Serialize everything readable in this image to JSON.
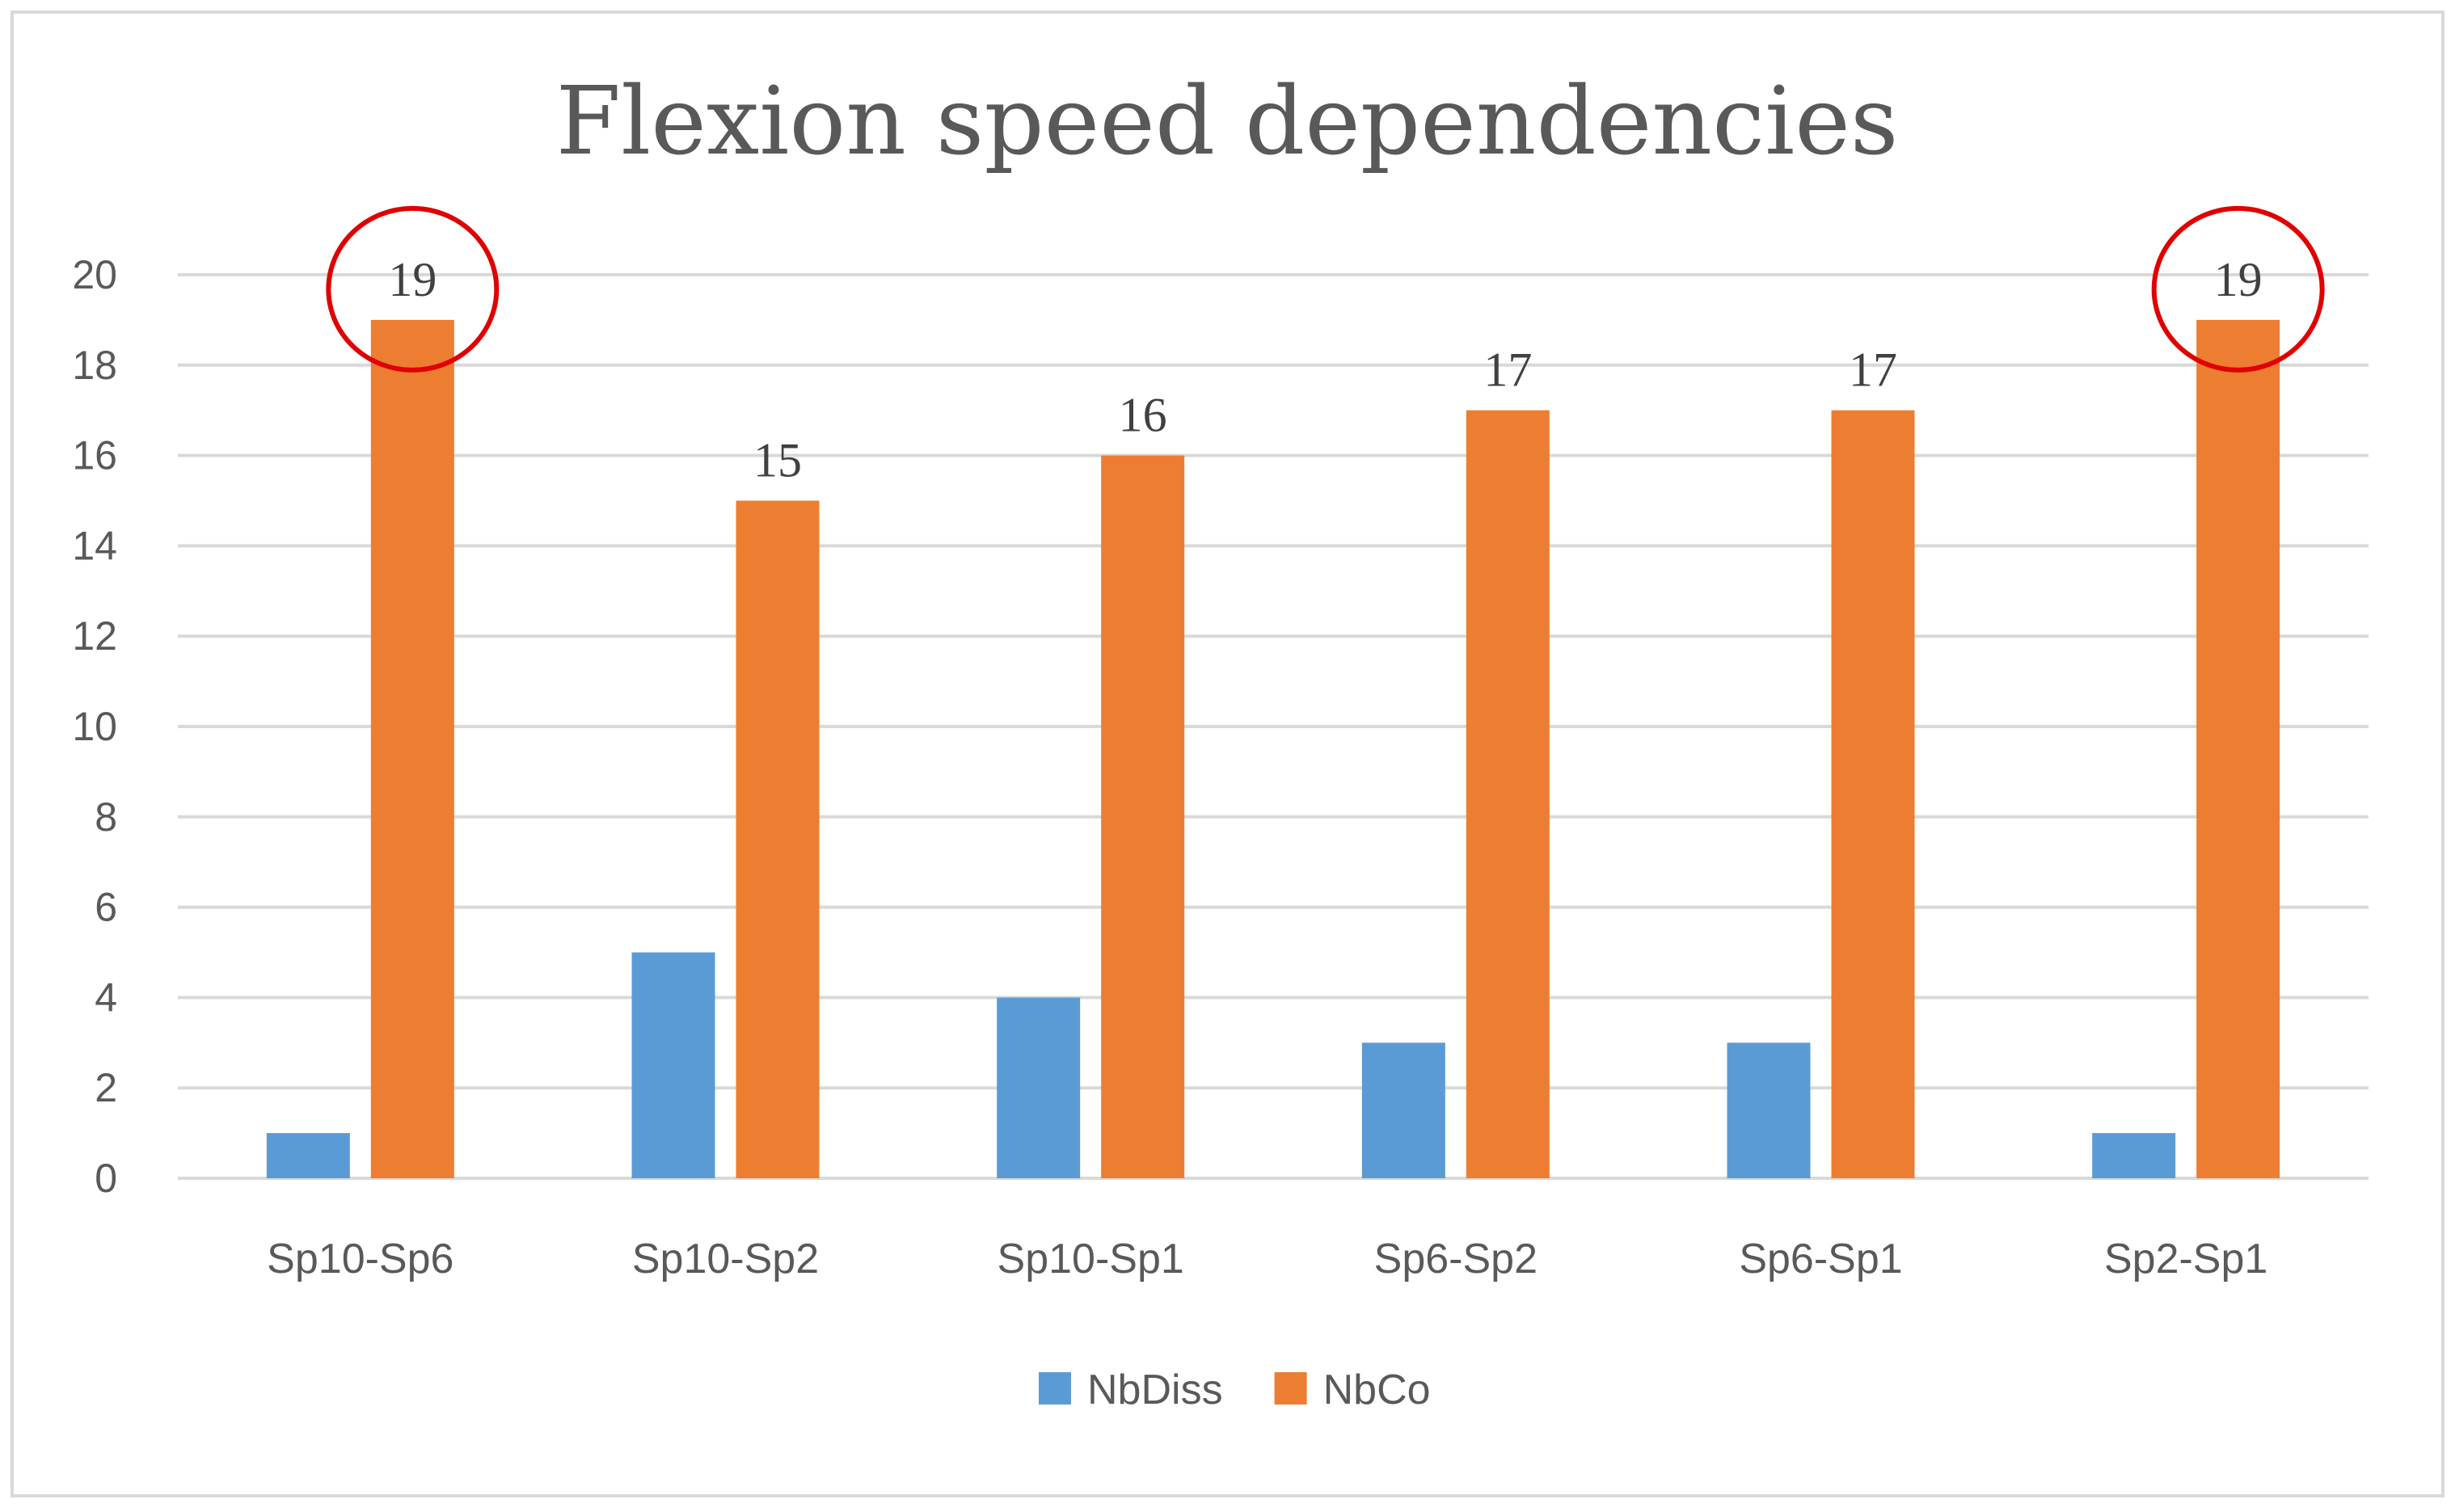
{
  "chart_data": {
    "type": "bar",
    "title": "Flexion speed dependencies",
    "categories": [
      "Sp10-Sp6",
      "Sp10-Sp2",
      "Sp10-Sp1",
      "Sp6-Sp2",
      "Sp6-Sp1",
      "Sp2-Sp1"
    ],
    "series": [
      {
        "name": "NbDiss",
        "values": [
          1,
          5,
          4,
          3,
          3,
          1
        ],
        "color": "#5B9BD5"
      },
      {
        "name": "NbCo",
        "values": [
          19,
          15,
          16,
          17,
          17,
          19
        ],
        "color": "#ED7D31"
      }
    ],
    "data_labels_series": "NbCo",
    "highlighted": [
      {
        "series": "NbCo",
        "category": "Sp10-Sp6",
        "shape": "red-circle"
      },
      {
        "series": "NbCo",
        "category": "Sp2-Sp1",
        "shape": "red-circle"
      }
    ],
    "ylim": [
      0,
      20
    ],
    "yticks": [
      0,
      2,
      4,
      6,
      8,
      10,
      12,
      14,
      16,
      18,
      20
    ],
    "xlabel": "",
    "ylabel": "",
    "grid": true,
    "legend_position": "bottom",
    "colors": {
      "grid": "#D9D9D9",
      "axis_text": "#595959",
      "title_text": "#595959",
      "label_text": "#404040",
      "highlight": "#E00000",
      "border": "#D9D9D9"
    }
  }
}
